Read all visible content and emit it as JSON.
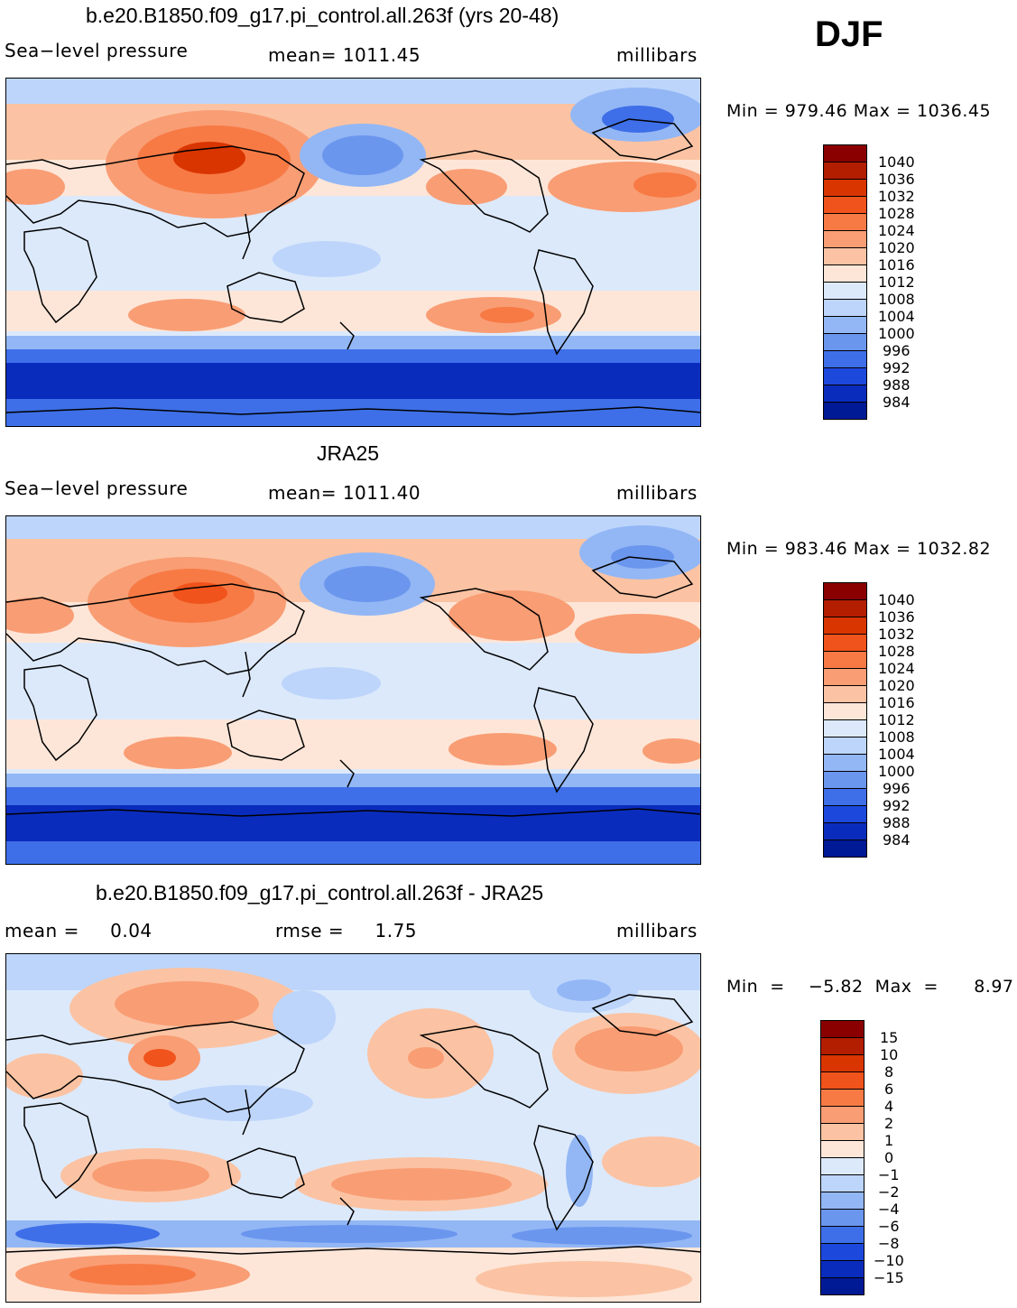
{
  "season": "DJF",
  "panels": [
    {
      "id": "model",
      "title": "b.e20.B1850.f09_g17.pi_control.all.263f (yrs 20-48)",
      "left_text": "Sea−level pressure",
      "center_text": "mean=  1011.45",
      "right_text": "millibars",
      "minmax": "Min  =  979.46  Max  =  1036.45",
      "colorbar": {
        "levels": [
          "1040",
          "1036",
          "1032",
          "1028",
          "1024",
          "1020",
          "1016",
          "1012",
          "1008",
          "1004",
          "1000",
          "996",
          "992",
          "988",
          "984"
        ],
        "colors": [
          "#8a0000",
          "#b31d00",
          "#d93500",
          "#f0531b",
          "#f77a45",
          "#f99d74",
          "#fbc3a3",
          "#fde6d8",
          "#dce9fb",
          "#bdd5fb",
          "#93b7f5",
          "#6b96ee",
          "#3e6fe8",
          "#1c48dc",
          "#0a2cbd",
          "#001995"
        ]
      }
    },
    {
      "id": "obs",
      "title": "JRA25",
      "left_text": "Sea−level pressure",
      "center_text": "mean=  1011.40",
      "right_text": "millibars",
      "minmax": "Min  =  983.46  Max  =  1032.82",
      "colorbar": {
        "levels": [
          "1040",
          "1036",
          "1032",
          "1028",
          "1024",
          "1020",
          "1016",
          "1012",
          "1008",
          "1004",
          "1000",
          "996",
          "992",
          "988",
          "984"
        ],
        "colors": [
          "#8a0000",
          "#b31d00",
          "#d93500",
          "#f0531b",
          "#f77a45",
          "#f99d74",
          "#fbc3a3",
          "#fde6d8",
          "#dce9fb",
          "#bdd5fb",
          "#93b7f5",
          "#6b96ee",
          "#3e6fe8",
          "#1c48dc",
          "#0a2cbd",
          "#001995"
        ]
      }
    },
    {
      "id": "diff",
      "title": "b.e20.B1850.f09_g17.pi_control.all.263f - JRA25",
      "left_text": "mean =     0.04",
      "center_text": "rmse =     1.75",
      "right_text": "millibars",
      "minmax": "Min  =    −5.82  Max  =      8.97",
      "colorbar": {
        "levels": [
          "15",
          "10",
          "8",
          "6",
          "4",
          "2",
          "1",
          "0",
          "−1",
          "−2",
          "−4",
          "−6",
          "−8",
          "−10",
          "−15"
        ],
        "colors": [
          "#8a0000",
          "#b31d00",
          "#d93500",
          "#f0531b",
          "#f77a45",
          "#f99d74",
          "#fbc3a3",
          "#fde6d8",
          "#dce9fb",
          "#bdd5fb",
          "#93b7f5",
          "#6b96ee",
          "#3e6fe8",
          "#1c48dc",
          "#0a2cbd",
          "#001995"
        ]
      }
    }
  ],
  "colors": {
    "high": "#f77a45",
    "mid_high": "#fbc3a3",
    "neutral": "#fde6d8",
    "low": "#bdd5fb",
    "very_low": "#1c48dc",
    "deepest": "#001995"
  }
}
